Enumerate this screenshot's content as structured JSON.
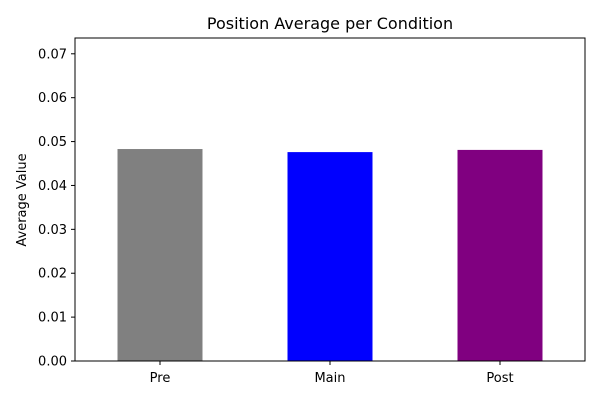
{
  "chart_data": {
    "type": "bar",
    "title": "Position Average per Condition",
    "xlabel": "",
    "ylabel": "Average Value",
    "categories": [
      "Pre",
      "Main",
      "Post"
    ],
    "values": [
      0.0483,
      0.0476,
      0.0481
    ],
    "colors": [
      "#808080",
      "#0000ff",
      "#800080"
    ],
    "ylim": [
      0,
      0.0736
    ],
    "yticks": [
      0.0,
      0.01,
      0.02,
      0.03,
      0.04,
      0.05,
      0.06,
      0.07
    ],
    "ytick_labels": [
      "0.00",
      "0.01",
      "0.02",
      "0.03",
      "0.04",
      "0.05",
      "0.06",
      "0.07"
    ],
    "grid": false,
    "legend": "none"
  }
}
